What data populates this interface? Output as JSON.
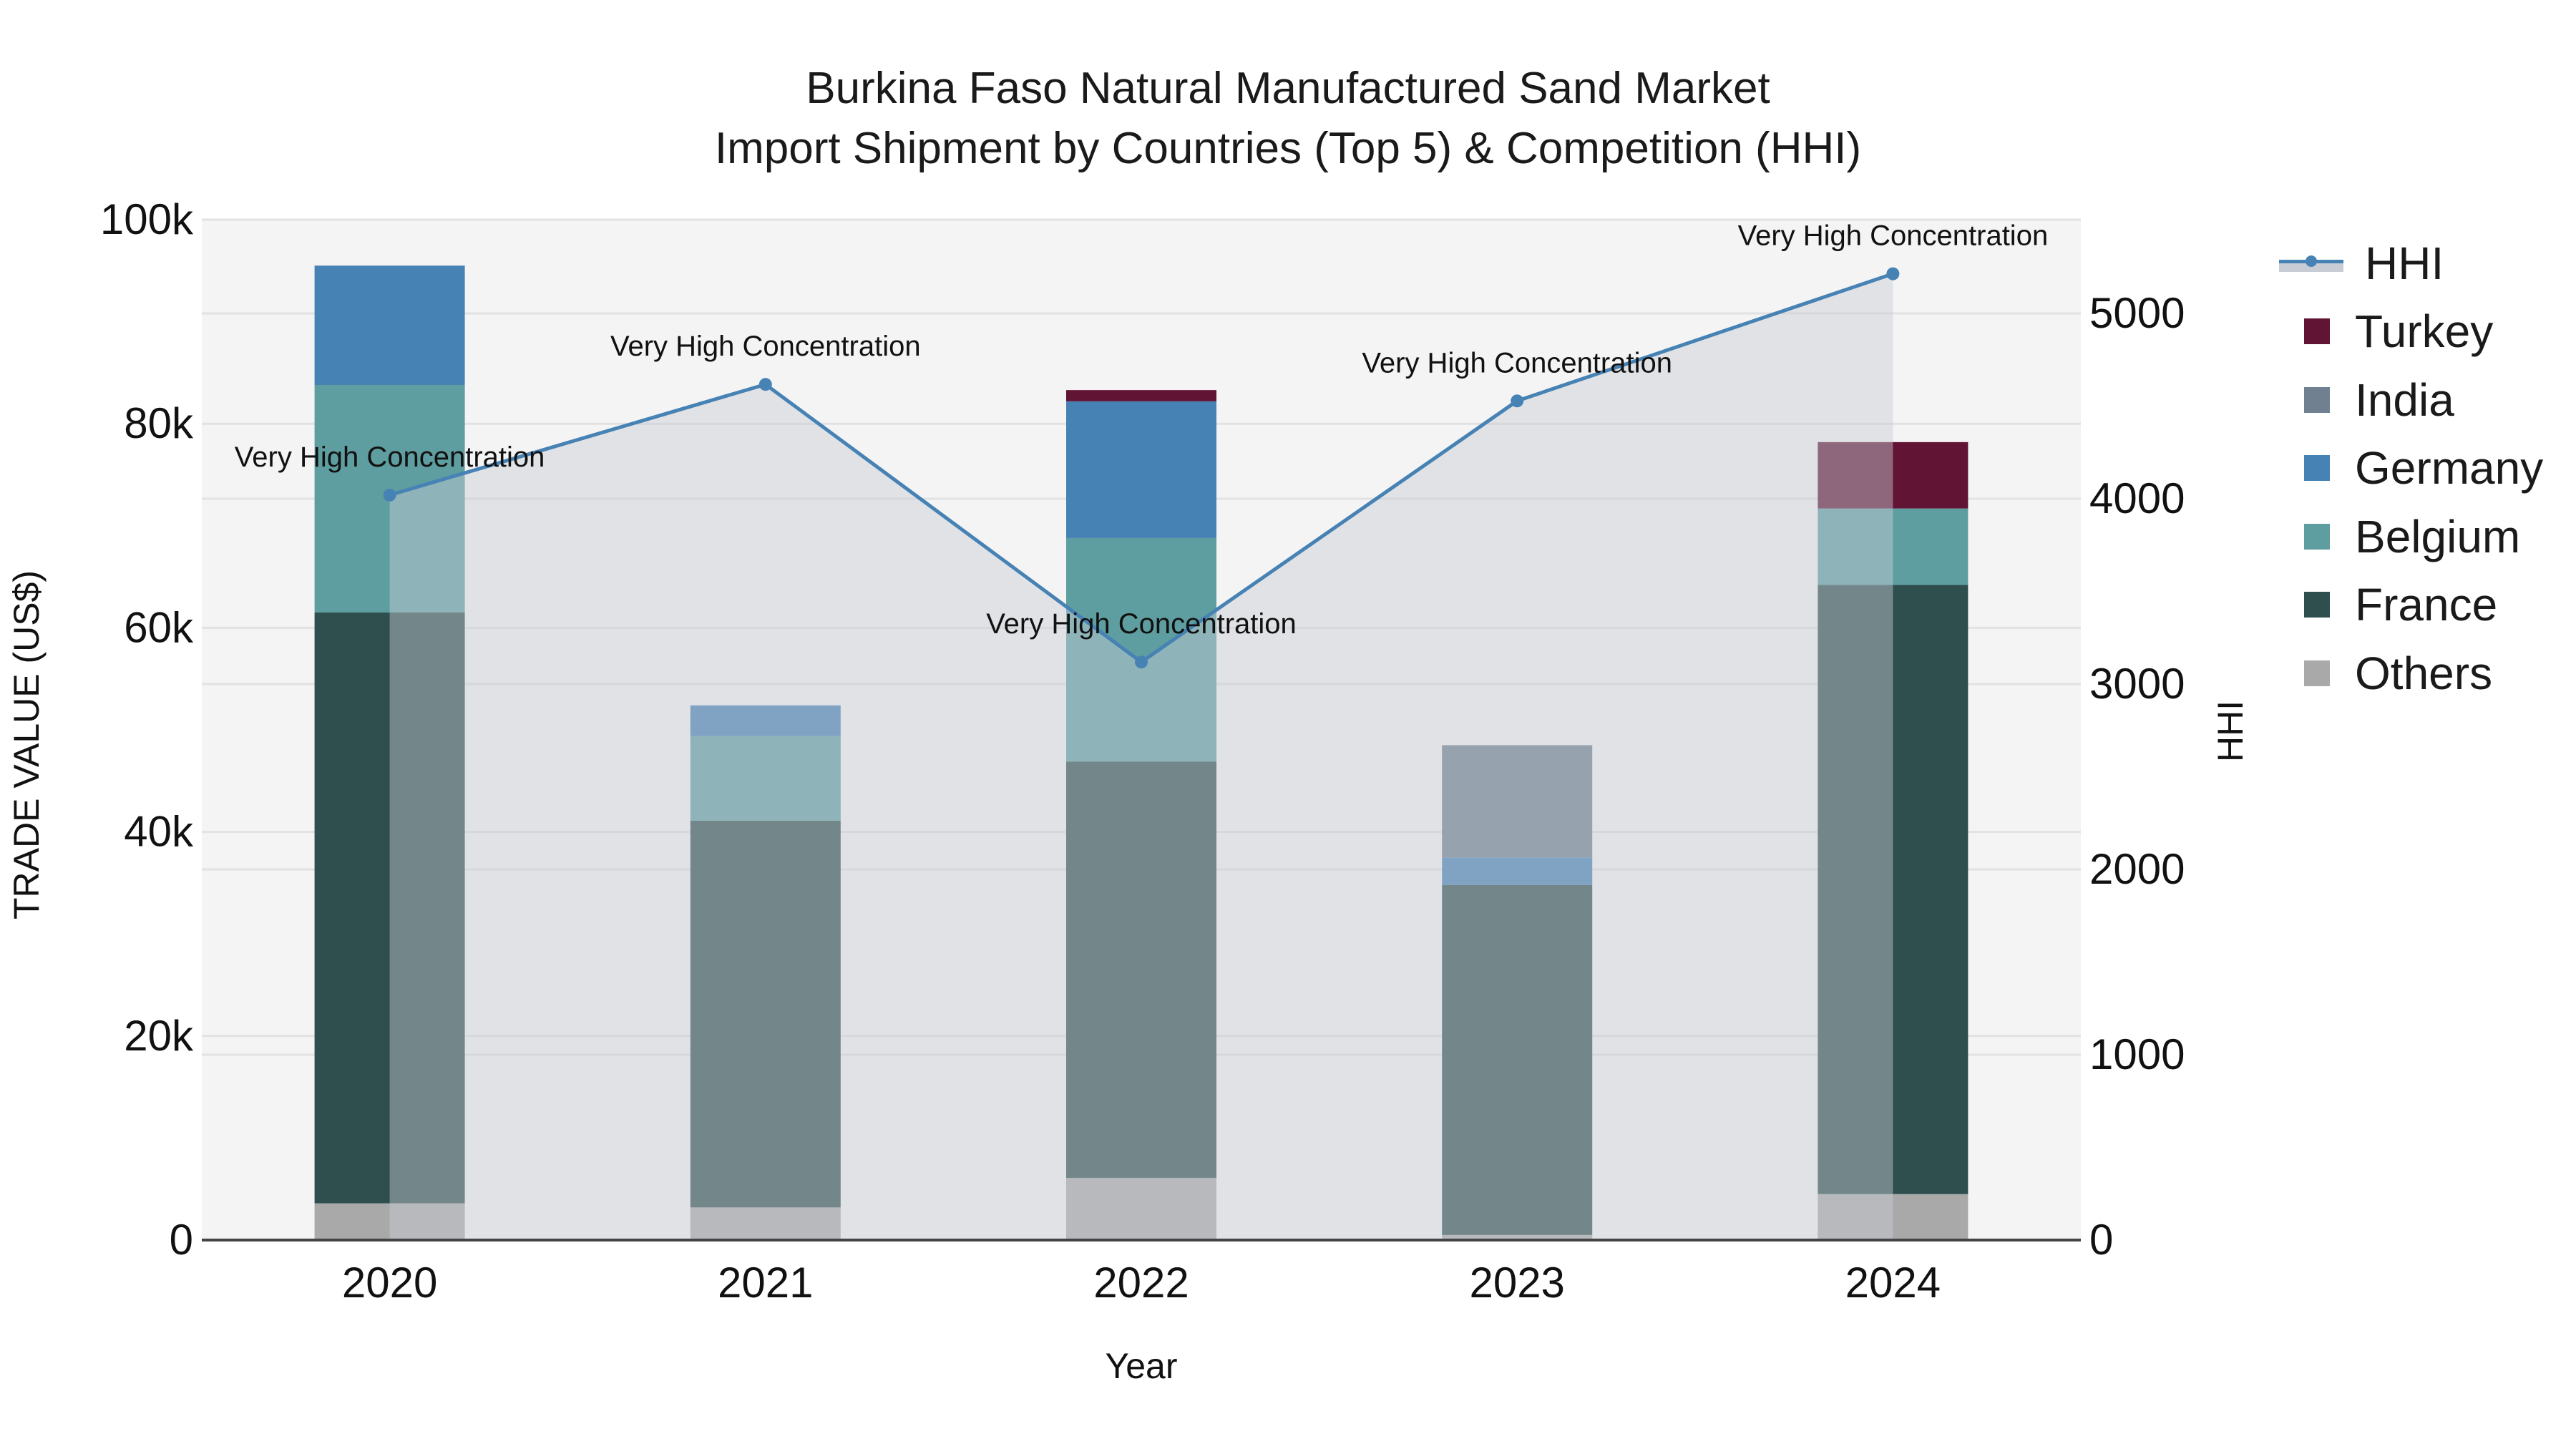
{
  "title": {
    "line1": "Burkina Faso Natural Manufactured Sand Market",
    "line2": "Import Shipment by Countries (Top 5) & Competition (HHI)"
  },
  "axes": {
    "x_label": "Year",
    "y_left_label": "TRADE VALUE (US$)",
    "y_right_label": "HHI",
    "y_left_ticks": [
      "0",
      "20k",
      "40k",
      "60k",
      "80k",
      "100k"
    ],
    "y_left_tick_values": [
      0,
      20000,
      40000,
      60000,
      80000,
      100000
    ],
    "y_right_ticks": [
      "0",
      "1000",
      "2000",
      "3000",
      "4000",
      "5000"
    ],
    "y_right_tick_values": [
      0,
      1000,
      2000,
      3000,
      4000,
      5000
    ]
  },
  "legend": [
    {
      "name": "HHI",
      "type": "line",
      "color": "#4682b4"
    },
    {
      "name": "Turkey",
      "type": "bar",
      "color": "#611434"
    },
    {
      "name": "India",
      "type": "bar",
      "color": "#708090"
    },
    {
      "name": "Germany",
      "type": "bar",
      "color": "#4682b4"
    },
    {
      "name": "Belgium",
      "type": "bar",
      "color": "#5f9ea0"
    },
    {
      "name": "France",
      "type": "bar",
      "color": "#2f4f4f"
    },
    {
      "name": "Others",
      "type": "bar",
      "color": "#a9a9a9"
    }
  ],
  "chart_data": {
    "type": "bar",
    "stacked": true,
    "title": "Burkina Faso Natural Manufactured Sand Market\nImport Shipment by Countries (Top 5) & Competition (HHI)",
    "xlabel": "Year",
    "ylabel": "TRADE VALUE (US$)",
    "y2label": "HHI",
    "ylim": [
      0,
      100000
    ],
    "y2lim": [
      0,
      5506
    ],
    "grid": true,
    "legend_position": "right",
    "categories": [
      "2020",
      "2021",
      "2022",
      "2023",
      "2024"
    ],
    "series": [
      {
        "name": "Others",
        "color": "#a9a9a9",
        "values": [
          3600,
          3200,
          6100,
          500,
          4500
        ]
      },
      {
        "name": "France",
        "color": "#2f4f4f",
        "values": [
          57900,
          37900,
          40800,
          34300,
          59700
        ]
      },
      {
        "name": "Belgium",
        "color": "#5f9ea0",
        "values": [
          22300,
          8300,
          21900,
          0,
          7500
        ]
      },
      {
        "name": "Germany",
        "color": "#4682b4",
        "values": [
          11700,
          3000,
          13400,
          2700,
          0
        ]
      },
      {
        "name": "India",
        "color": "#708090",
        "values": [
          0,
          0,
          0,
          11000,
          0
        ]
      },
      {
        "name": "Turkey",
        "color": "#611434",
        "values": [
          0,
          0,
          1100,
          0,
          6500
        ]
      }
    ],
    "line_series": {
      "name": "HHI",
      "axis": "right",
      "color": "#4682b4",
      "fill": "#c8cdd5",
      "values": [
        4020,
        4617,
        3119,
        4528,
        5214
      ],
      "annotations": [
        "Very High Concentration",
        "Very High Concentration",
        "Very High Concentration",
        "Very High Concentration",
        "Very High Concentration"
      ]
    }
  }
}
